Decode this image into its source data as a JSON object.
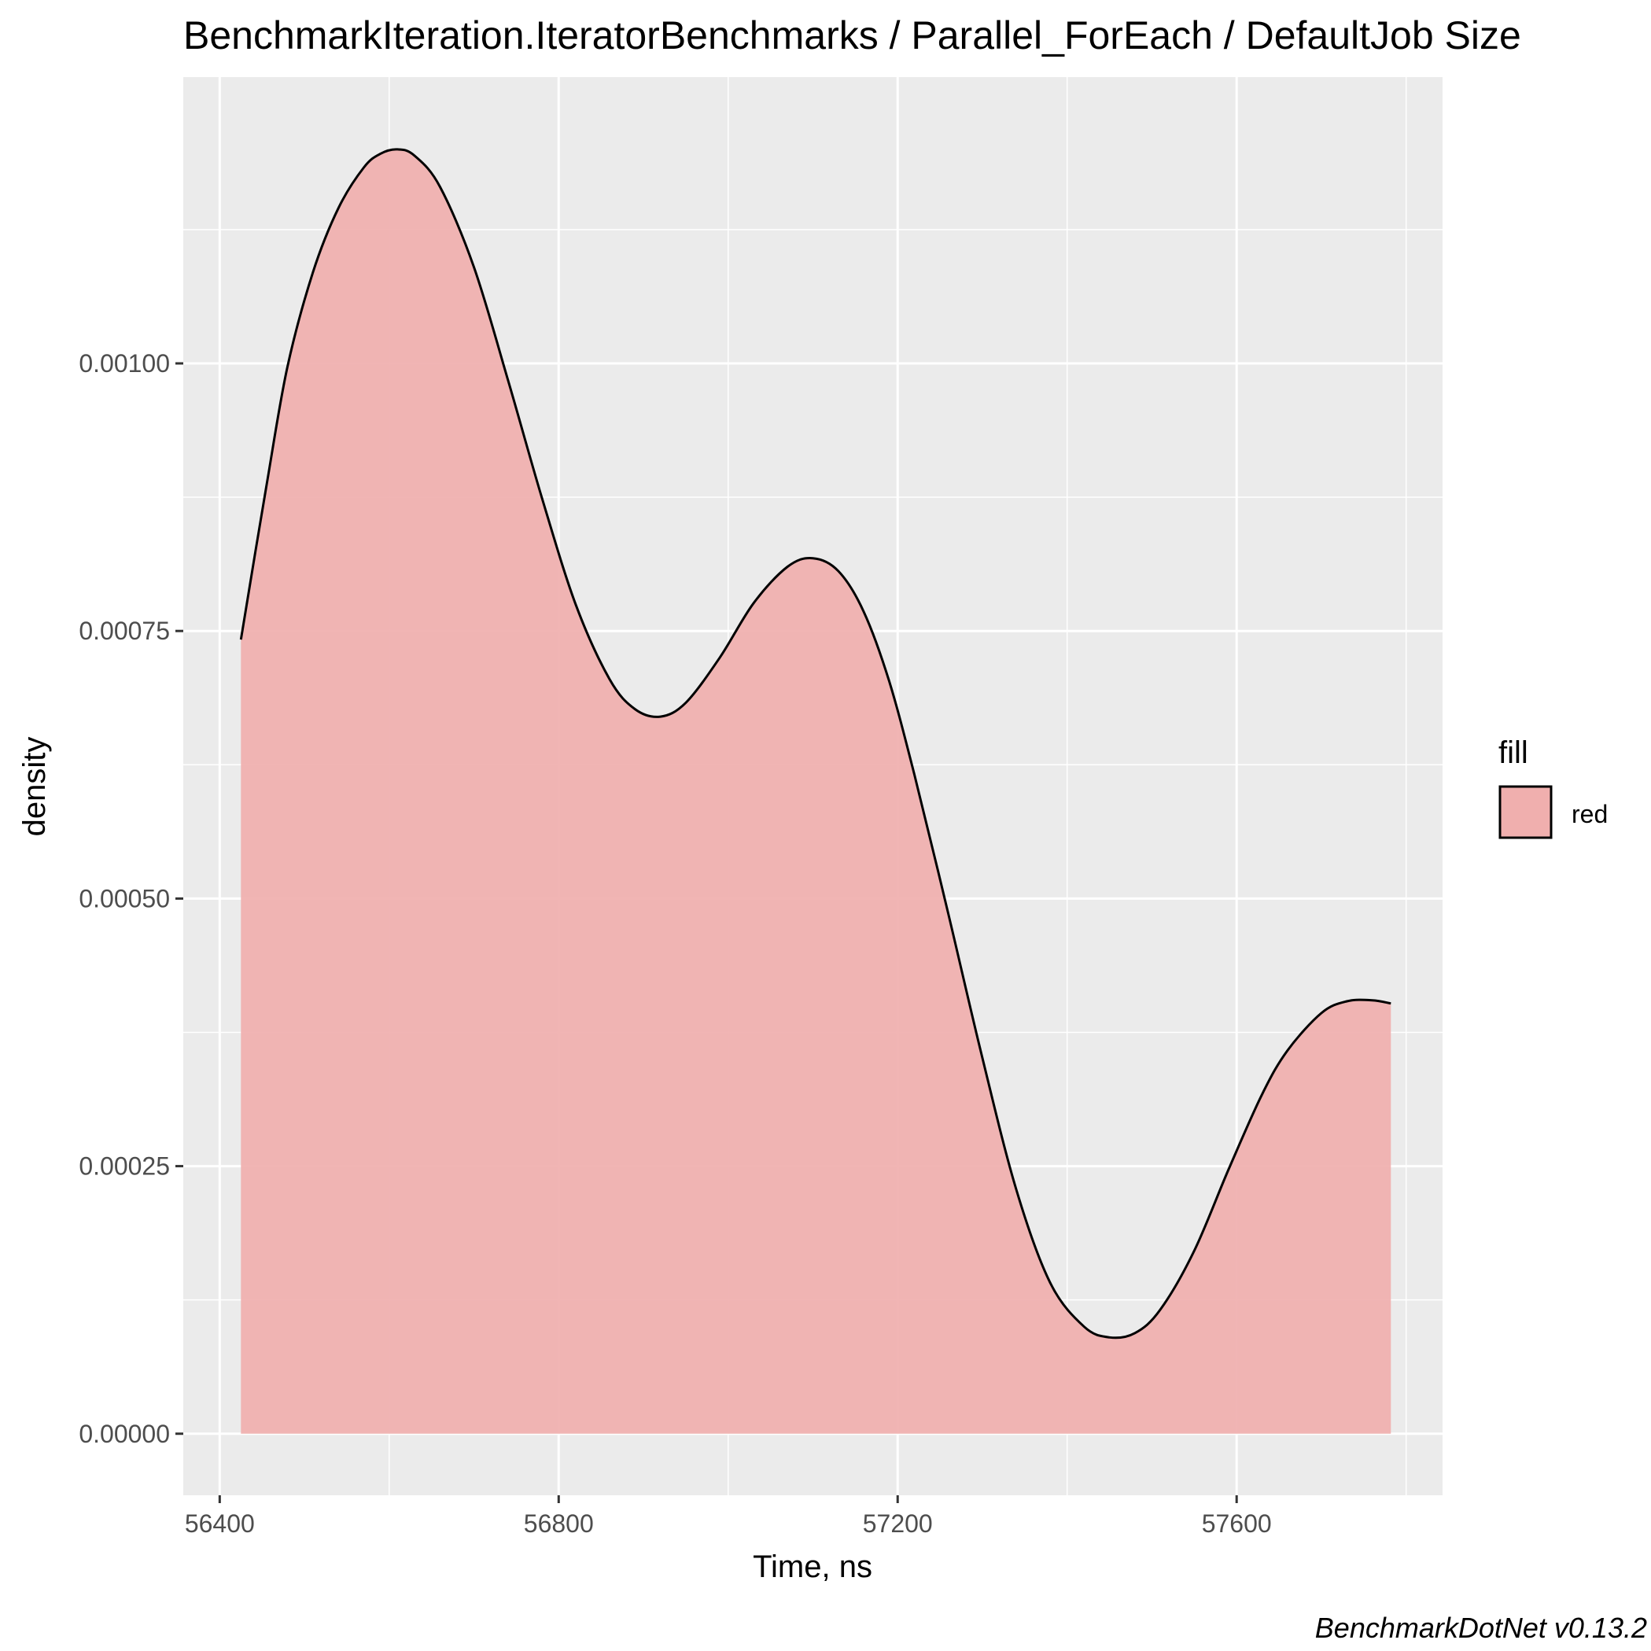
{
  "chart_data": {
    "type": "area",
    "title": "BenchmarkIteration.IteratorBenchmarks / Parallel_ForEach / DefaultJob Size",
    "xlabel": "Time, ns",
    "ylabel": "density",
    "caption": "BenchmarkDotNet v0.13.2",
    "xlim": [
      56357,
      57843
    ],
    "ylim": [
      -5.75e-05,
      0.0012675
    ],
    "x_ticks": [
      56400,
      56800,
      57200,
      57600
    ],
    "x_tick_labels": [
      "56400",
      "56800",
      "57200",
      "57600"
    ],
    "x_minor_ticks": [
      56600,
      57000,
      57400,
      57800
    ],
    "y_ticks": [
      0,
      0.00025,
      0.0005,
      0.00075,
      0.001
    ],
    "y_tick_labels": [
      "0.00000",
      "0.00025",
      "0.00050",
      "0.00075",
      "0.00100"
    ],
    "y_minor_ticks": [
      0.000125,
      0.000375,
      0.000625,
      0.000875,
      0.001125
    ],
    "grid": true,
    "legend": {
      "title": "fill",
      "position": "right",
      "entries": [
        {
          "label": "red",
          "color": "#f0afae"
        }
      ]
    },
    "series": [
      {
        "name": "red",
        "fill": "#f0afae",
        "stroke": "#000000",
        "x": [
          56425,
          56455,
          56480,
          56510,
          56540,
          56570,
          56590,
          56610,
          56630,
          56660,
          56700,
          56740,
          56780,
          56820,
          56860,
          56890,
          56920,
          56950,
          56990,
          57030,
          57070,
          57100,
          57130,
          57160,
          57190,
          57220,
          57260,
          57300,
          57340,
          57380,
          57420,
          57450,
          57480,
          57510,
          57550,
          57590,
          57630,
          57660,
          57700,
          57730,
          57760,
          57782
        ],
        "y": [
          0.000742,
          0.000885,
          0.000997,
          0.001085,
          0.001145,
          0.001183,
          0.001196,
          0.0012,
          0.001194,
          0.001165,
          0.00109,
          0.000985,
          0.000875,
          0.000775,
          0.000705,
          0.000677,
          0.00067,
          0.000683,
          0.000725,
          0.000776,
          0.00081,
          0.000818,
          0.000806,
          0.000768,
          0.000703,
          0.000615,
          0.000485,
          0.000351,
          0.000228,
          0.000141,
          0.0001,
          9e-05,
          9.4e-05,
          0.000116,
          0.000171,
          0.000246,
          0.000317,
          0.000358,
          0.000393,
          0.000404,
          0.000405,
          0.000402
        ]
      }
    ]
  }
}
